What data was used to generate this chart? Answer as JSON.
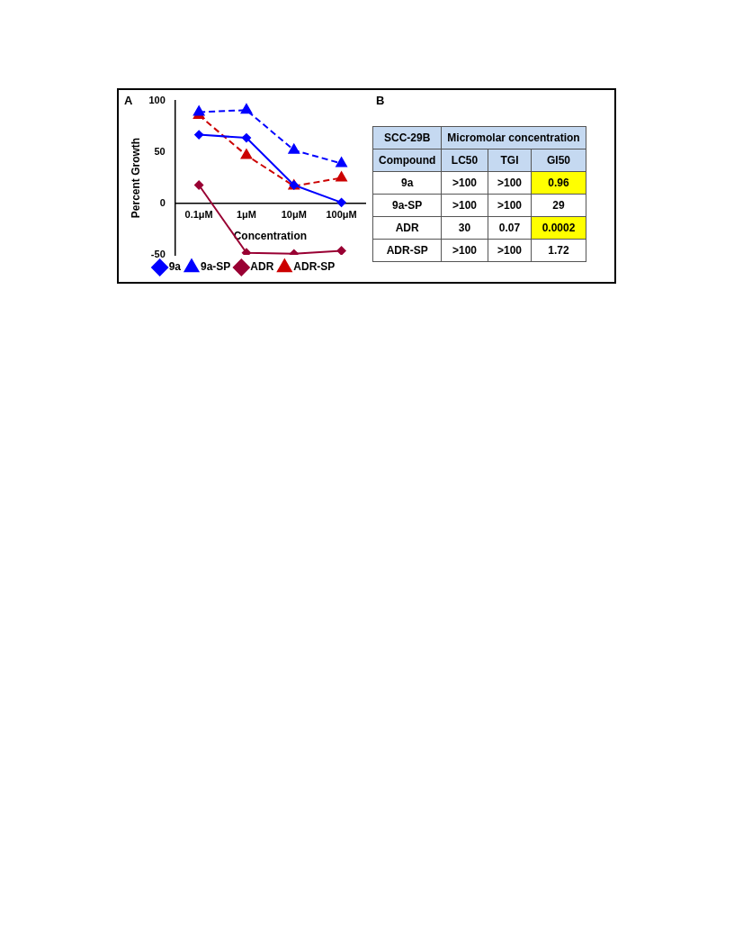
{
  "chart_data": [
    {
      "type": "line",
      "title": "A",
      "xlabel": "Concentration",
      "ylabel": "Percent Growth",
      "categories": [
        "0.1μM",
        "1μM",
        "10μM",
        "100μM"
      ],
      "series": [
        {
          "name": "9a",
          "color": "#0000ff",
          "values": [
            67,
            64,
            18,
            1
          ],
          "marker": "diamond",
          "line_style": "solid"
        },
        {
          "name": "9a-SP",
          "color": "#0000ff",
          "values": [
            89,
            91,
            52,
            39
          ],
          "marker": "triangle",
          "line_style": "dashed"
        },
        {
          "name": "ADR",
          "color": "#990033",
          "values": [
            18,
            -48,
            -49,
            -46
          ],
          "marker": "diamond",
          "line_style": "solid"
        },
        {
          "name": "ADR-SP",
          "color": "#cc0000",
          "values": [
            86,
            47,
            17,
            25
          ],
          "marker": "triangle",
          "line_style": "dashed"
        }
      ],
      "ylim": [
        -50,
        100
      ],
      "yticks": [
        -50,
        0,
        50,
        100
      ],
      "grid": false,
      "legend": "bottom"
    },
    {
      "type": "other",
      "title": "B",
      "annotations": [
        "SCC-29B",
        "Micromolar concentration",
        "Compound",
        "LC50",
        "TGI",
        "GI50",
        "9a",
        ">100",
        ">100",
        "0.96",
        "9a-SP",
        ">100",
        ">100",
        "29",
        "ADR",
        "30",
        "0.07",
        "0.0002",
        "ADR-SP",
        ">100",
        ">100",
        "1.72"
      ],
      "colors": [
        "#c5d9f1",
        "#c5d9f1",
        "#c5d9f1",
        "#c5d9f1",
        "#c5d9f1",
        "#c5d9f1",
        null,
        null,
        null,
        "#ffff00",
        null,
        null,
        null,
        null,
        null,
        null,
        null,
        "#ffff00",
        null,
        null,
        null,
        null
      ]
    }
  ]
}
